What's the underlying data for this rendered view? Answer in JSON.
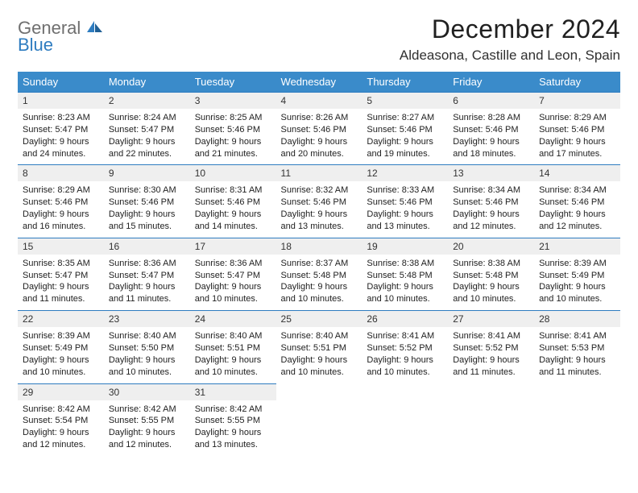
{
  "logo": {
    "line1": "General",
    "line2": "Blue"
  },
  "header": {
    "title": "December 2024",
    "location": "Aldeasona, Castille and Leon, Spain"
  },
  "colors": {
    "header_bg": "#3a8bca",
    "header_text": "#ffffff",
    "daynum_bg": "#efefef",
    "daynum_border": "#2e7cc0",
    "logo_gray": "#6f6f6f",
    "logo_blue": "#2e7cc0",
    "page_bg": "#ffffff"
  },
  "fonts": {
    "title_size": 32,
    "location_size": 17,
    "dayhead_size": 13,
    "daybody_size": 11
  },
  "dayNames": [
    "Sunday",
    "Monday",
    "Tuesday",
    "Wednesday",
    "Thursday",
    "Friday",
    "Saturday"
  ],
  "weeks": [
    [
      {
        "n": "1",
        "sunrise": "8:23 AM",
        "sunset": "5:47 PM",
        "dl": "9 hours and 24 minutes."
      },
      {
        "n": "2",
        "sunrise": "8:24 AM",
        "sunset": "5:47 PM",
        "dl": "9 hours and 22 minutes."
      },
      {
        "n": "3",
        "sunrise": "8:25 AM",
        "sunset": "5:46 PM",
        "dl": "9 hours and 21 minutes."
      },
      {
        "n": "4",
        "sunrise": "8:26 AM",
        "sunset": "5:46 PM",
        "dl": "9 hours and 20 minutes."
      },
      {
        "n": "5",
        "sunrise": "8:27 AM",
        "sunset": "5:46 PM",
        "dl": "9 hours and 19 minutes."
      },
      {
        "n": "6",
        "sunrise": "8:28 AM",
        "sunset": "5:46 PM",
        "dl": "9 hours and 18 minutes."
      },
      {
        "n": "7",
        "sunrise": "8:29 AM",
        "sunset": "5:46 PM",
        "dl": "9 hours and 17 minutes."
      }
    ],
    [
      {
        "n": "8",
        "sunrise": "8:29 AM",
        "sunset": "5:46 PM",
        "dl": "9 hours and 16 minutes."
      },
      {
        "n": "9",
        "sunrise": "8:30 AM",
        "sunset": "5:46 PM",
        "dl": "9 hours and 15 minutes."
      },
      {
        "n": "10",
        "sunrise": "8:31 AM",
        "sunset": "5:46 PM",
        "dl": "9 hours and 14 minutes."
      },
      {
        "n": "11",
        "sunrise": "8:32 AM",
        "sunset": "5:46 PM",
        "dl": "9 hours and 13 minutes."
      },
      {
        "n": "12",
        "sunrise": "8:33 AM",
        "sunset": "5:46 PM",
        "dl": "9 hours and 13 minutes."
      },
      {
        "n": "13",
        "sunrise": "8:34 AM",
        "sunset": "5:46 PM",
        "dl": "9 hours and 12 minutes."
      },
      {
        "n": "14",
        "sunrise": "8:34 AM",
        "sunset": "5:46 PM",
        "dl": "9 hours and 12 minutes."
      }
    ],
    [
      {
        "n": "15",
        "sunrise": "8:35 AM",
        "sunset": "5:47 PM",
        "dl": "9 hours and 11 minutes."
      },
      {
        "n": "16",
        "sunrise": "8:36 AM",
        "sunset": "5:47 PM",
        "dl": "9 hours and 11 minutes."
      },
      {
        "n": "17",
        "sunrise": "8:36 AM",
        "sunset": "5:47 PM",
        "dl": "9 hours and 10 minutes."
      },
      {
        "n": "18",
        "sunrise": "8:37 AM",
        "sunset": "5:48 PM",
        "dl": "9 hours and 10 minutes."
      },
      {
        "n": "19",
        "sunrise": "8:38 AM",
        "sunset": "5:48 PM",
        "dl": "9 hours and 10 minutes."
      },
      {
        "n": "20",
        "sunrise": "8:38 AM",
        "sunset": "5:48 PM",
        "dl": "9 hours and 10 minutes."
      },
      {
        "n": "21",
        "sunrise": "8:39 AM",
        "sunset": "5:49 PM",
        "dl": "9 hours and 10 minutes."
      }
    ],
    [
      {
        "n": "22",
        "sunrise": "8:39 AM",
        "sunset": "5:49 PM",
        "dl": "9 hours and 10 minutes."
      },
      {
        "n": "23",
        "sunrise": "8:40 AM",
        "sunset": "5:50 PM",
        "dl": "9 hours and 10 minutes."
      },
      {
        "n": "24",
        "sunrise": "8:40 AM",
        "sunset": "5:51 PM",
        "dl": "9 hours and 10 minutes."
      },
      {
        "n": "25",
        "sunrise": "8:40 AM",
        "sunset": "5:51 PM",
        "dl": "9 hours and 10 minutes."
      },
      {
        "n": "26",
        "sunrise": "8:41 AM",
        "sunset": "5:52 PM",
        "dl": "9 hours and 10 minutes."
      },
      {
        "n": "27",
        "sunrise": "8:41 AM",
        "sunset": "5:52 PM",
        "dl": "9 hours and 11 minutes."
      },
      {
        "n": "28",
        "sunrise": "8:41 AM",
        "sunset": "5:53 PM",
        "dl": "9 hours and 11 minutes."
      }
    ],
    [
      {
        "n": "29",
        "sunrise": "8:42 AM",
        "sunset": "5:54 PM",
        "dl": "9 hours and 12 minutes."
      },
      {
        "n": "30",
        "sunrise": "8:42 AM",
        "sunset": "5:55 PM",
        "dl": "9 hours and 12 minutes."
      },
      {
        "n": "31",
        "sunrise": "8:42 AM",
        "sunset": "5:55 PM",
        "dl": "9 hours and 13 minutes."
      },
      null,
      null,
      null,
      null
    ]
  ],
  "labels": {
    "sunrise": "Sunrise: ",
    "sunset": "Sunset: ",
    "daylight": "Daylight: "
  }
}
